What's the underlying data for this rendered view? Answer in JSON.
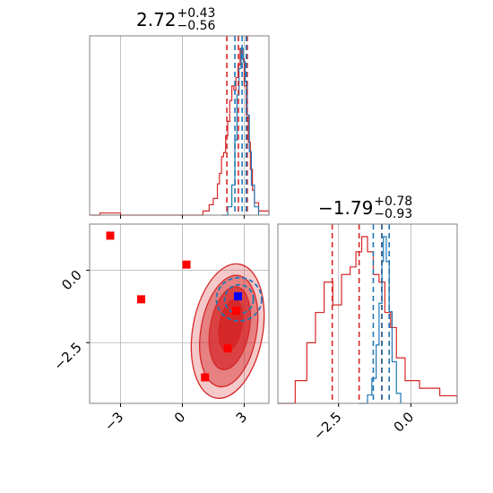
{
  "chart_data": {
    "type": "corner",
    "parameters": [
      {
        "title_value": "2.72",
        "title_plus": "+0.43",
        "title_minus": "−0.56",
        "range": [
          -4.5,
          4.2
        ],
        "ticks": [
          {
            "value": -3,
            "label": "−3"
          },
          {
            "value": 0,
            "label": "0"
          },
          {
            "value": 3,
            "label": "3"
          }
        ],
        "quantiles_red": [
          2.16,
          2.72,
          3.15
        ],
        "quantiles_blue": [
          2.55,
          2.9,
          3.1
        ]
      },
      {
        "title_value": "−1.79",
        "title_plus": "+0.78",
        "title_minus": "−0.93",
        "range": [
          -4.6,
          1.6
        ],
        "ticks": [
          {
            "value": -2.5,
            "label": "−2.5"
          },
          {
            "value": 0.0,
            "label": "0.0"
          }
        ],
        "quantiles_red": [
          -2.72,
          -1.79,
          -1.01
        ],
        "quantiles_blue": [
          -1.3,
          -1.0,
          -0.75
        ]
      }
    ],
    "y_ticks_2d": [
      {
        "value": 0.0,
        "label": "0.0"
      },
      {
        "value": -2.5,
        "label": "−2.5"
      }
    ],
    "hist1_red": {
      "x": [
        -4.5,
        -4.0,
        -3.0,
        0.0,
        1.0,
        1.3,
        1.5,
        1.7,
        1.8,
        1.9,
        2.0,
        2.1,
        2.2,
        2.3,
        2.4,
        2.5,
        2.6,
        2.7,
        2.8,
        2.9,
        3.0,
        3.1,
        3.2,
        3.3,
        3.4,
        3.5,
        3.7,
        4.2
      ],
      "y": [
        0,
        0.01,
        0,
        0,
        0.02,
        0.05,
        0.08,
        0.15,
        0.2,
        0.28,
        0.3,
        0.38,
        0.45,
        0.55,
        0.62,
        0.6,
        0.66,
        0.72,
        0.8,
        0.75,
        0.62,
        0.48,
        0.35,
        0.22,
        0.12,
        0.06,
        0.02,
        0
      ]
    },
    "hist1_blue": {
      "x": [
        1.9,
        2.2,
        2.4,
        2.55,
        2.65,
        2.75,
        2.85,
        2.95,
        3.05,
        3.15,
        3.25,
        3.35,
        3.5,
        3.7
      ],
      "y": [
        0,
        0.05,
        0.18,
        0.45,
        0.72,
        0.88,
        1.0,
        0.92,
        0.8,
        0.6,
        0.38,
        0.18,
        0.05,
        0
      ]
    },
    "hist2_red": {
      "x": [
        -4.6,
        -4.0,
        -3.6,
        -3.3,
        -3.0,
        -2.7,
        -2.4,
        -2.1,
        -1.9,
        -1.7,
        -1.5,
        -1.3,
        -1.1,
        -0.9,
        -0.7,
        -0.5,
        -0.2,
        0.3,
        1.0,
        1.6
      ],
      "y": [
        0.0,
        0.03,
        0.08,
        0.12,
        0.16,
        0.13,
        0.17,
        0.18,
        0.2,
        0.22,
        0.2,
        0.17,
        0.16,
        0.12,
        0.1,
        0.06,
        0.03,
        0.02,
        0.01,
        0
      ]
    },
    "hist2_blue": {
      "x": [
        -1.8,
        -1.5,
        -1.35,
        -1.2,
        -1.1,
        -1.0,
        -0.95,
        -0.85,
        -0.75,
        -0.65,
        -0.5,
        -0.35
      ],
      "y": [
        0,
        0.05,
        0.15,
        0.35,
        0.6,
        0.85,
        1.0,
        0.85,
        0.55,
        0.25,
        0.06,
        0
      ]
    },
    "contours_red": [
      {
        "center": [
          2.2,
          -2.1
        ],
        "rx": 1.7,
        "ry": 2.35,
        "level": 0.95
      },
      {
        "center": [
          2.25,
          -2.1
        ],
        "rx": 1.35,
        "ry": 1.95,
        "level": 0.86
      },
      {
        "center": [
          2.3,
          -2.0
        ],
        "rx": 0.95,
        "ry": 1.45,
        "level": 0.68
      },
      {
        "center": [
          2.35,
          -1.9
        ],
        "rx": 0.55,
        "ry": 0.9,
        "level": 0.39
      }
    ],
    "contours_blue": [
      {
        "center": [
          2.75,
          -1.0
        ],
        "rx": 1.1,
        "ry": 0.75
      },
      {
        "center": [
          2.75,
          -1.0
        ],
        "rx": 0.7,
        "ry": 0.5
      }
    ],
    "markers_red": [
      {
        "x": -3.5,
        "y": 1.2
      },
      {
        "x": -2.0,
        "y": -1.0
      },
      {
        "x": 0.2,
        "y": 0.2
      },
      {
        "x": 1.1,
        "y": -3.7
      },
      {
        "x": 2.2,
        "y": -2.7
      },
      {
        "x": 2.6,
        "y": -1.4
      }
    ],
    "marker_blue": {
      "x": 2.7,
      "y": -0.9
    },
    "colors": {
      "red": "#d62728",
      "blue": "#1f77b4",
      "marker_red": "#ff0000",
      "marker_blue": "#0000ff",
      "grid": "#b0b0b0",
      "frame": "#808080"
    }
  }
}
